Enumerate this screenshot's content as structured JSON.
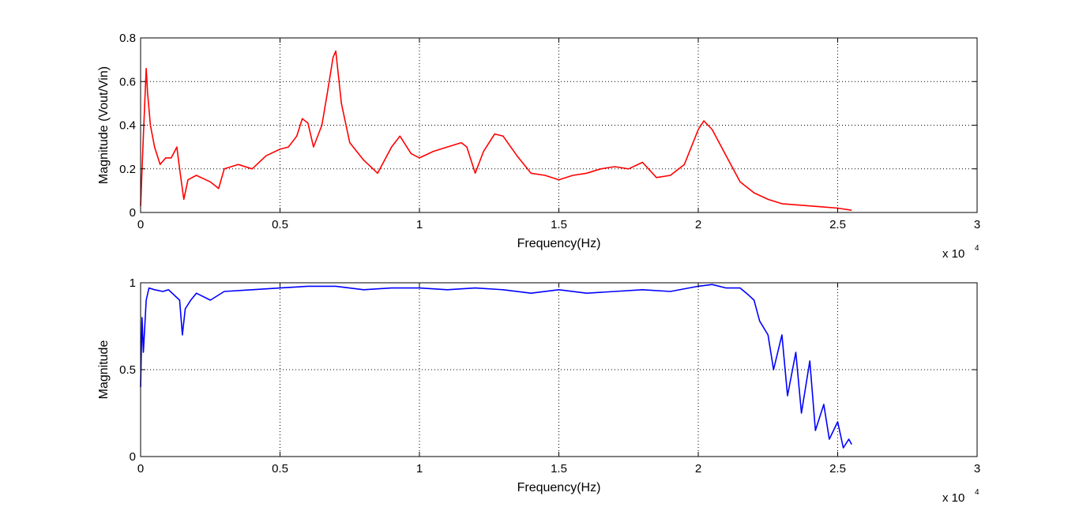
{
  "chart_data": [
    {
      "type": "line",
      "xlabel": "Frequency(Hz)",
      "ylabel": "Magnitude (Vout/Vin)",
      "xlim": [
        0,
        3
      ],
      "ylim": [
        0,
        0.8
      ],
      "x_exponent_label": "x 10",
      "x_exponent_power": "4",
      "x_ticks": [
        0,
        0.5,
        1,
        1.5,
        2,
        2.5,
        3
      ],
      "x_tick_labels": [
        "0",
        "0.5",
        "1",
        "1.5",
        "2",
        "2.5",
        "3"
      ],
      "y_ticks": [
        0,
        0.2,
        0.4,
        0.6,
        0.8
      ],
      "y_tick_labels": [
        "0",
        "0.2",
        "0.4",
        "0.6",
        "0.8"
      ],
      "grid": true,
      "series": [
        {
          "color": "#ff0000",
          "x": [
            0,
            0.01,
            0.02,
            0.025,
            0.035,
            0.05,
            0.07,
            0.09,
            0.11,
            0.13,
            0.14,
            0.155,
            0.17,
            0.2,
            0.25,
            0.28,
            0.3,
            0.35,
            0.4,
            0.45,
            0.5,
            0.53,
            0.56,
            0.58,
            0.6,
            0.62,
            0.65,
            0.67,
            0.69,
            0.7,
            0.72,
            0.75,
            0.8,
            0.85,
            0.9,
            0.93,
            0.97,
            1.0,
            1.05,
            1.1,
            1.15,
            1.17,
            1.2,
            1.23,
            1.27,
            1.3,
            1.35,
            1.4,
            1.45,
            1.5,
            1.55,
            1.6,
            1.65,
            1.7,
            1.75,
            1.8,
            1.85,
            1.9,
            1.95,
            2.0,
            2.02,
            2.05,
            2.1,
            2.15,
            2.2,
            2.25,
            2.3,
            2.35,
            2.4,
            2.45,
            2.5,
            2.55
          ],
          "y": [
            0.03,
            0.35,
            0.66,
            0.55,
            0.4,
            0.3,
            0.22,
            0.25,
            0.25,
            0.3,
            0.2,
            0.06,
            0.15,
            0.17,
            0.14,
            0.11,
            0.2,
            0.22,
            0.2,
            0.26,
            0.29,
            0.3,
            0.35,
            0.43,
            0.41,
            0.3,
            0.4,
            0.55,
            0.71,
            0.74,
            0.5,
            0.32,
            0.24,
            0.18,
            0.3,
            0.35,
            0.27,
            0.25,
            0.28,
            0.3,
            0.32,
            0.3,
            0.18,
            0.28,
            0.36,
            0.35,
            0.26,
            0.18,
            0.17,
            0.15,
            0.17,
            0.18,
            0.2,
            0.21,
            0.2,
            0.23,
            0.16,
            0.17,
            0.22,
            0.38,
            0.42,
            0.38,
            0.26,
            0.14,
            0.09,
            0.06,
            0.04,
            0.035,
            0.03,
            0.025,
            0.02,
            0.01
          ]
        }
      ]
    },
    {
      "type": "line",
      "xlabel": "Frequency(Hz)",
      "ylabel": "Magnitude",
      "xlim": [
        0,
        3
      ],
      "ylim": [
        0,
        1
      ],
      "x_exponent_label": "x 10",
      "x_exponent_power": "4",
      "x_ticks": [
        0,
        0.5,
        1,
        1.5,
        2,
        2.5,
        3
      ],
      "x_tick_labels": [
        "0",
        "0.5",
        "1",
        "1.5",
        "2",
        "2.5",
        "3"
      ],
      "y_ticks": [
        0,
        0.5,
        1
      ],
      "y_tick_labels": [
        "0",
        "0.5",
        "1"
      ],
      "grid": true,
      "series": [
        {
          "color": "#0000ff",
          "x": [
            0,
            0.005,
            0.01,
            0.02,
            0.03,
            0.05,
            0.08,
            0.1,
            0.14,
            0.15,
            0.16,
            0.18,
            0.2,
            0.25,
            0.3,
            0.4,
            0.5,
            0.6,
            0.7,
            0.8,
            0.9,
            1.0,
            1.1,
            1.2,
            1.3,
            1.4,
            1.5,
            1.6,
            1.7,
            1.8,
            1.9,
            2.0,
            2.05,
            2.1,
            2.15,
            2.18,
            2.2,
            2.22,
            2.25,
            2.27,
            2.3,
            2.32,
            2.35,
            2.37,
            2.4,
            2.42,
            2.45,
            2.47,
            2.5,
            2.52,
            2.54,
            2.55
          ],
          "y": [
            0.4,
            0.8,
            0.6,
            0.9,
            0.97,
            0.96,
            0.95,
            0.96,
            0.9,
            0.7,
            0.85,
            0.9,
            0.94,
            0.9,
            0.95,
            0.96,
            0.97,
            0.98,
            0.98,
            0.96,
            0.97,
            0.97,
            0.96,
            0.97,
            0.96,
            0.94,
            0.96,
            0.94,
            0.95,
            0.96,
            0.95,
            0.98,
            0.99,
            0.97,
            0.97,
            0.93,
            0.9,
            0.78,
            0.7,
            0.5,
            0.7,
            0.35,
            0.6,
            0.25,
            0.55,
            0.15,
            0.3,
            0.1,
            0.2,
            0.05,
            0.1,
            0.07
          ]
        }
      ]
    }
  ]
}
